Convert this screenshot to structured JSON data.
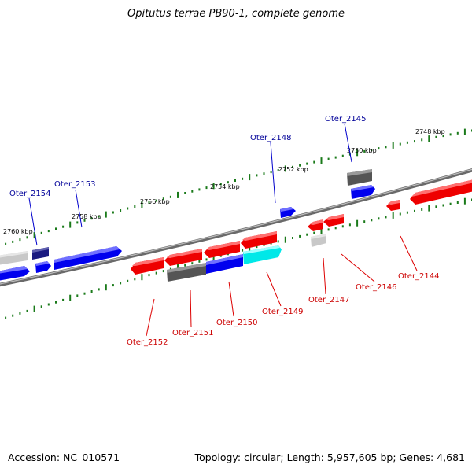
{
  "title": "Opitutus terrae PB90-1, complete genome",
  "footer": {
    "accession": "Accession: NC_010571",
    "topology": "Topology: circular; Length: 5,957,605 bp; Genes: 4,681"
  },
  "scale_labels": [
    "2748 kbp",
    "2750 kbp",
    "2752 kbp",
    "2754 kbp",
    "2756 kbp",
    "2758 kbp",
    "2760 kbp"
  ],
  "genes_top": [
    "Oter_2145",
    "Oter_2148",
    "Oter_2153",
    "Oter_2154"
  ],
  "genes_bottom": [
    "Oter_2144",
    "Oter_2146",
    "Oter_2147",
    "Oter_2149",
    "Oter_2150",
    "Oter_2151",
    "Oter_2152"
  ],
  "colors": {
    "forward_strand": "#0000ee",
    "reverse_strand": "#ee0000",
    "pseudo_dark": "#555555",
    "pseudo_light": "#c8c8c8",
    "highlight": "#00e8e8",
    "navy": "#1a1a80",
    "backbone": "#7a7a7a",
    "tick": "#1a7a1a",
    "top_label": "#000099",
    "bottom_label": "#cc0000"
  }
}
